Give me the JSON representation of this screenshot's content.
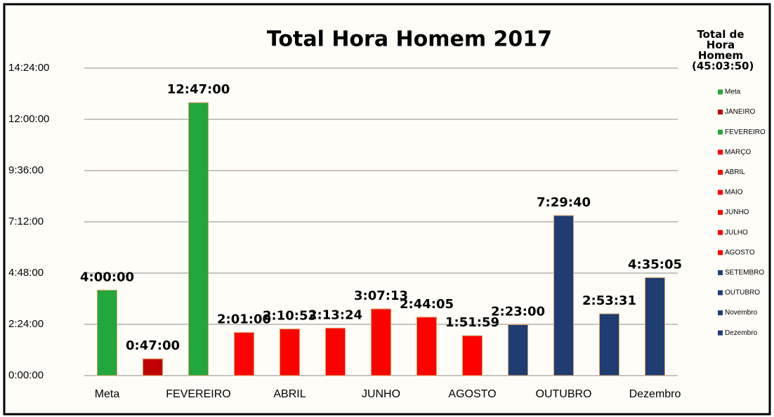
{
  "chart_data": {
    "type": "bar",
    "title": "Total Hora Homem 2017",
    "categories": [
      "Meta",
      null,
      "FEVEREIRO",
      null,
      "ABRIL",
      null,
      "JUNHO",
      null,
      "AGOSTO",
      null,
      "OUTUBRO",
      null,
      "Dezembro"
    ],
    "values": [
      4,
      0.783333,
      12.783333,
      2.016667,
      2.181389,
      2.223333,
      3.120278,
      2.734722,
      1.866389,
      2.383333,
      7.494444,
      2.891944,
      4.584722
    ],
    "value_labels": [
      "4:00:00",
      "0:47:00",
      "12:47:00",
      "2:01:00",
      "2:10:53",
      "2:13:24",
      "3:07:13",
      "2:44:05",
      "1:51:59",
      "2:23:00",
      "7:29:40",
      "2:53:31",
      "4:35:05"
    ],
    "ylim": [
      0,
      14.4
    ],
    "yticks": [
      {
        "value": 0,
        "label": "0:00:00"
      },
      {
        "value": 2.4,
        "label": "2:24:00"
      },
      {
        "value": 4.8,
        "label": "4:48:00"
      },
      {
        "value": 7.2,
        "label": "7:12:00"
      },
      {
        "value": 9.6,
        "label": "9:36:00"
      },
      {
        "value": 12,
        "label": "12:00:00"
      },
      {
        "value": 14.4,
        "label": "14:24:00"
      }
    ],
    "grid": true,
    "legend_position": "right",
    "legend_title": "Total de Hora Homem (45:03:50)",
    "legend": [
      {
        "name": "Meta",
        "color": "#22a83a"
      },
      {
        "name": "JANEIRO",
        "color": "#c00000"
      },
      {
        "name": "FEVEREIRO",
        "color": "#22a83a"
      },
      {
        "name": "MARÇO",
        "color": "#ff0000"
      },
      {
        "name": "ABRIL",
        "color": "#ff0000"
      },
      {
        "name": "MAIO",
        "color": "#ff0000"
      },
      {
        "name": "JUNHO",
        "color": "#ff0000"
      },
      {
        "name": "JULHO",
        "color": "#ff0000"
      },
      {
        "name": "AGOSTO",
        "color": "#ff0000"
      },
      {
        "name": "SETEMBRO",
        "color": "#1f3d73"
      },
      {
        "name": "OUTUBRO",
        "color": "#1f3d73"
      },
      {
        "name": "Novembro",
        "color": "#1f3d73"
      },
      {
        "name": "Dezembro",
        "color": "#1f3d73"
      }
    ]
  }
}
